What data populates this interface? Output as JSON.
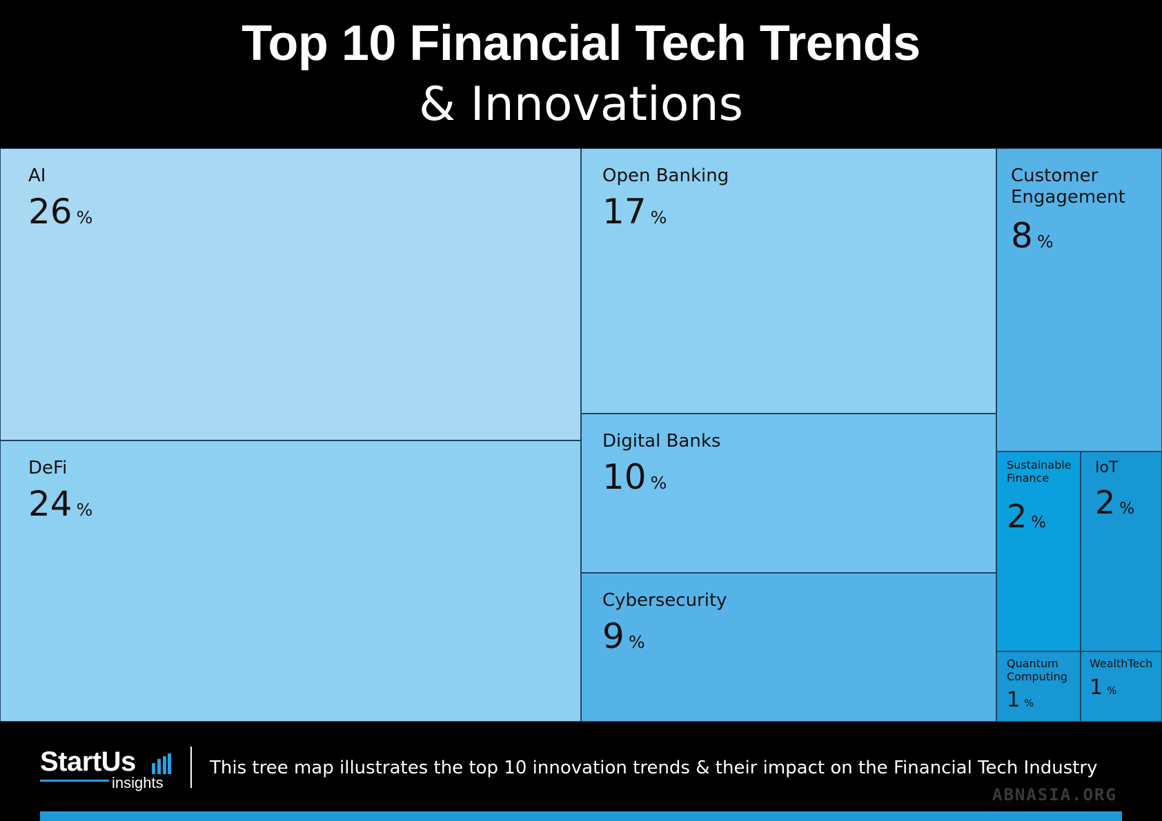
{
  "header": {
    "title_line1": "Top 10 Financial Tech Trends",
    "title_line2": "& Innovations"
  },
  "chart_data": {
    "type": "treemap",
    "unit": "%",
    "items": [
      {
        "name": "AI",
        "value": 26,
        "color": "#a9d8f3"
      },
      {
        "name": "DeFi",
        "value": 24,
        "color": "#8ed0f2"
      },
      {
        "name": "Open Banking",
        "value": 17,
        "color": "#8ed0f2"
      },
      {
        "name": "Digital Banks",
        "value": 10,
        "color": "#72c2ef"
      },
      {
        "name": "Cybersecurity",
        "value": 9,
        "color": "#56b3e8"
      },
      {
        "name": "Customer Engagement",
        "value": 8,
        "color": "#56b3e8"
      },
      {
        "name": "Sustainable Finance",
        "value": 2,
        "color": "#0ba0dd"
      },
      {
        "name": "IoT",
        "value": 2,
        "color": "#1797d4"
      },
      {
        "name": "Quantum Computing",
        "value": 1,
        "color": "#1797d4"
      },
      {
        "name": "WealthTech",
        "value": 1,
        "color": "#1797d4"
      }
    ]
  },
  "footer": {
    "logo_main": "StartUs",
    "logo_sub": "insights",
    "caption": "This tree map illustrates the top 10 innovation trends & their impact on the Financial Tech Industry",
    "accent_color": "#1e9ad6",
    "watermark": "ABNASIA.ORG"
  }
}
